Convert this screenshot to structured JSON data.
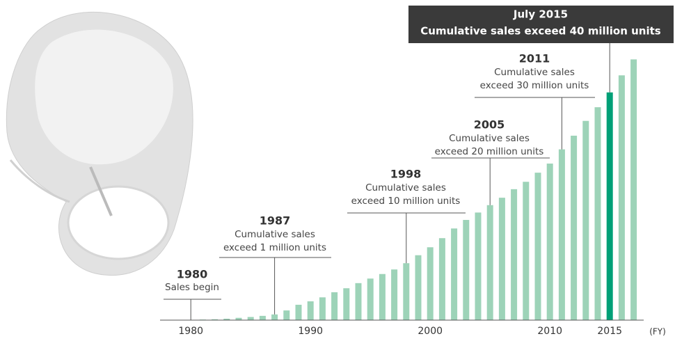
{
  "chart_data": {
    "type": "bar",
    "x": [
      1980,
      1981,
      1982,
      1983,
      1984,
      1985,
      1986,
      1987,
      1988,
      1989,
      1990,
      1991,
      1992,
      1993,
      1994,
      1995,
      1996,
      1997,
      1998,
      1999,
      2000,
      2001,
      2002,
      2003,
      2004,
      2005,
      2006,
      2007,
      2008,
      2009,
      2010,
      2011,
      2012,
      2013,
      2014,
      2015,
      2016,
      2017
    ],
    "values": [
      0.05,
      0.1,
      0.15,
      0.25,
      0.4,
      0.55,
      0.75,
      1.0,
      1.7,
      2.7,
      3.3,
      4.0,
      4.9,
      5.6,
      6.5,
      7.3,
      8.1,
      8.9,
      10.0,
      11.4,
      12.8,
      14.4,
      16.1,
      17.6,
      18.9,
      20.2,
      21.5,
      23.0,
      24.3,
      25.9,
      27.5,
      30.0,
      32.4,
      35.0,
      37.4,
      40.0,
      43.0,
      45.8
    ],
    "colors": [
      "#9dd3b8",
      "#9dd3b8",
      "#9dd3b8",
      "#9dd3b8",
      "#9dd3b8",
      "#9dd3b8",
      "#9dd3b8",
      "#9dd3b8",
      "#9dd3b8",
      "#9dd3b8",
      "#9dd3b8",
      "#9dd3b8",
      "#9dd3b8",
      "#9dd3b8",
      "#9dd3b8",
      "#9dd3b8",
      "#9dd3b8",
      "#9dd3b8",
      "#9dd3b8",
      "#9dd3b8",
      "#9dd3b8",
      "#9dd3b8",
      "#9dd3b8",
      "#9dd3b8",
      "#9dd3b8",
      "#9dd3b8",
      "#9dd3b8",
      "#9dd3b8",
      "#9dd3b8",
      "#9dd3b8",
      "#9dd3b8",
      "#9dd3b8",
      "#9dd3b8",
      "#9dd3b8",
      "#9dd3b8",
      "#00a077",
      "#9dd3b8",
      "#9dd3b8"
    ],
    "xlim": [
      1979,
      2018
    ],
    "ylim": [
      0,
      50
    ],
    "xticks": [
      1980,
      1990,
      2000,
      2010,
      2015
    ],
    "x_unit": "(FY)",
    "annotations": [
      {
        "x": 1980,
        "title": "1980",
        "lines": [
          "Sales begin"
        ]
      },
      {
        "x": 1987,
        "title": "1987",
        "lines": [
          "Cumulative sales",
          "exceed 1 million units"
        ]
      },
      {
        "x": 1998,
        "title": "1998",
        "lines": [
          "Cumulative sales",
          "exceed 10 million units"
        ]
      },
      {
        "x": 2005,
        "title": "2005",
        "lines": [
          "Cumulative sales",
          "exceed 20 million units"
        ]
      },
      {
        "x": 2011,
        "title": "2011",
        "lines": [
          "Cumulative sales",
          "exceed 30 million units"
        ]
      },
      {
        "x": 2015,
        "title": "July 2015",
        "lines": [
          "Cumulative sales exceed 40 million units"
        ],
        "boxed": true
      }
    ]
  }
}
